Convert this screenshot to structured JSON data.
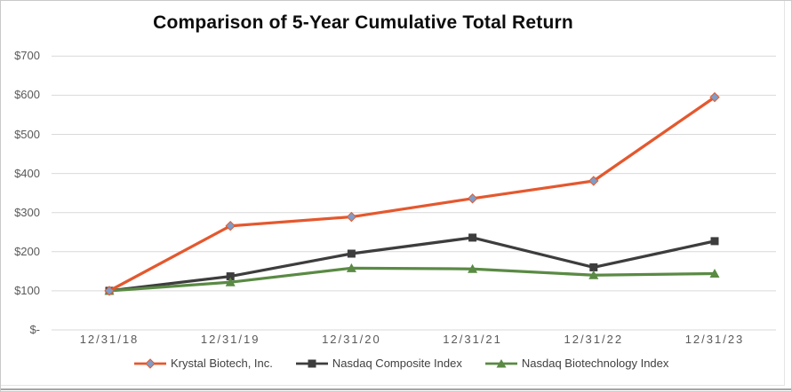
{
  "title": "Comparison of 5-Year Cumulative Total Return",
  "chart_data": {
    "type": "line",
    "title": "Comparison of 5-Year Cumulative Total Return",
    "categories": [
      "12/31/18",
      "12/31/19",
      "12/31/20",
      "12/31/21",
      "12/31/22",
      "12/31/23"
    ],
    "series": [
      {
        "name": "Krystal Biotech, Inc.",
        "values": [
          100,
          266,
          289,
          336,
          381,
          595
        ],
        "color": "#E4582E",
        "marker": "diamond",
        "marker_fill": "#7E9DC8"
      },
      {
        "name": "Nasdaq Composite Index",
        "values": [
          100,
          137,
          195,
          236,
          160,
          227
        ],
        "color": "#3D3D3D",
        "marker": "square",
        "marker_fill": "#3D3D3D"
      },
      {
        "name": "Nasdaq Biotechnology Index",
        "values": [
          100,
          122,
          158,
          156,
          140,
          144
        ],
        "color": "#5A8A44",
        "marker": "triangle",
        "marker_fill": "#5A8A44"
      }
    ],
    "y_ticks": [
      {
        "label": "$-",
        "value": 0
      },
      {
        "label": "$100",
        "value": 100
      },
      {
        "label": "$200",
        "value": 200
      },
      {
        "label": "$300",
        "value": 300
      },
      {
        "label": "$400",
        "value": 400
      },
      {
        "label": "$500",
        "value": 500
      },
      {
        "label": "$600",
        "value": 600
      },
      {
        "label": "$700",
        "value": 700
      }
    ],
    "ylim": [
      0,
      700
    ],
    "xlabel": "",
    "ylabel": "",
    "grid": "horizontal",
    "gridline_color": "#D9D9D9",
    "axis_label_color": "#595959",
    "legend_position": "bottom"
  }
}
